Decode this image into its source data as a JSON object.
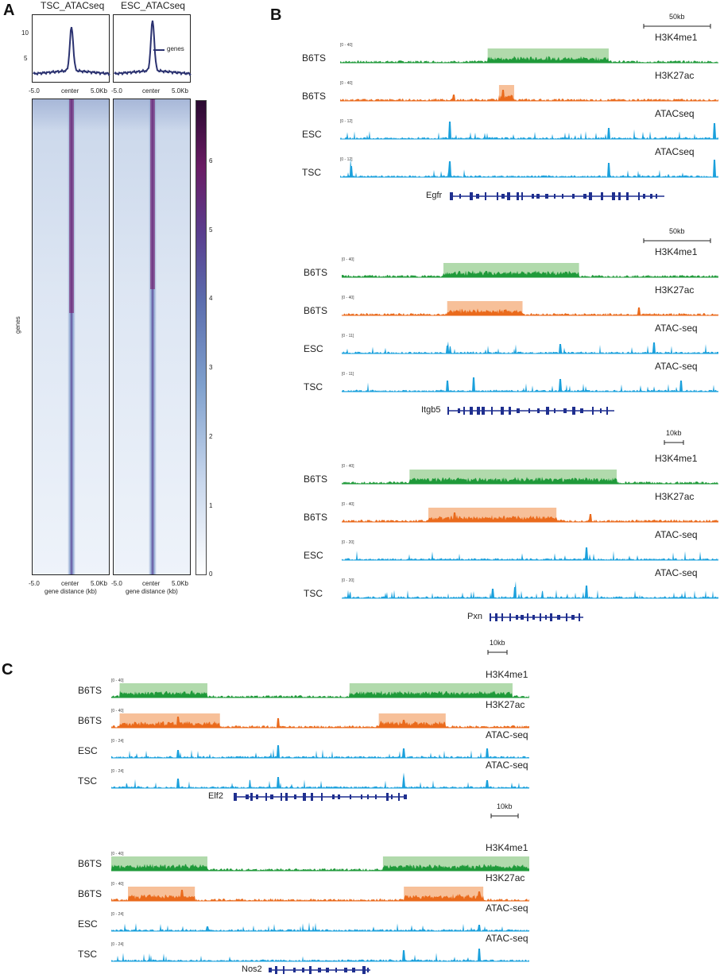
{
  "panels": {
    "A": "A",
    "B": "B",
    "C": "C"
  },
  "colors": {
    "h3k4me1": "#1f9a3a",
    "h3k4me1_box": "#a9d6a3",
    "h3k27ac": "#ea6a1c",
    "h3k27ac_box": "#f6b98e",
    "atac": "#1aa0dc",
    "gene": "#1f2f8f",
    "profile": "#2b3270"
  },
  "panelA": {
    "profiles": [
      {
        "title": "TSC_ATACseq",
        "yticks": [
          "10",
          "5"
        ],
        "xticks": [
          "-5.0",
          "center",
          "5.0Kb"
        ],
        "peak": 10.2
      },
      {
        "title": "ESC_ATACseq",
        "xticks": [
          "-5.0",
          "center",
          "5.0Kb"
        ],
        "legend": "genes",
        "peak": 11.5
      }
    ],
    "heatmap_ylabel": "genes",
    "heatmap_xticks": [
      "-5.0",
      "center",
      "5.0Kb"
    ],
    "heatmap_xlabel": "gene distance (kb)",
    "colorbar_ticks": [
      "6",
      "5",
      "4",
      "3",
      "2",
      "1",
      "0"
    ]
  },
  "panelB": [
    {
      "gene": "Egfr",
      "scale": "50kb",
      "tracks": [
        {
          "cell": "B6TS",
          "mark": "H3K4me1",
          "range": "[0 - 40]",
          "type": "h3k4me1"
        },
        {
          "cell": "B6TS",
          "mark": "H3K27ac",
          "range": "[0 - 40]",
          "type": "h3k27ac"
        },
        {
          "cell": "ESC",
          "mark": "ATACseq",
          "range": "[0 - 12]",
          "type": "atac"
        },
        {
          "cell": "TSC",
          "mark": "ATACseq",
          "range": "[0 - 12]",
          "type": "atac"
        }
      ]
    },
    {
      "gene": "Itgb5",
      "scale": "50kb",
      "tracks": [
        {
          "cell": "B6TS",
          "mark": "H3K4me1",
          "range": "[0 - 40]",
          "type": "h3k4me1"
        },
        {
          "cell": "B6TS",
          "mark": "H3K27ac",
          "range": "[0 - 40]",
          "type": "h3k27ac"
        },
        {
          "cell": "ESC",
          "mark": "ATAC-seq",
          "range": "[0 - 11]",
          "type": "atac"
        },
        {
          "cell": "TSC",
          "mark": "ATAC-seq",
          "range": "[0 - 11]",
          "type": "atac"
        }
      ]
    },
    {
      "gene": "Pxn",
      "scale": "10kb",
      "tracks": [
        {
          "cell": "B6TS",
          "mark": "H3K4me1",
          "range": "[0 - 40]",
          "type": "h3k4me1"
        },
        {
          "cell": "B6TS",
          "mark": "H3K27ac",
          "range": "[0 - 40]",
          "type": "h3k27ac"
        },
        {
          "cell": "ESC",
          "mark": "ATAC-seq",
          "range": "[0 - 20]",
          "type": "atac"
        },
        {
          "cell": "TSC",
          "mark": "ATAC-seq",
          "range": "[0 - 20]",
          "type": "atac"
        }
      ]
    }
  ],
  "panelC": [
    {
      "gene": "Elf2",
      "scale": "10kb",
      "tracks": [
        {
          "cell": "B6TS",
          "mark": "H3K4me1",
          "range": "[0 - 40]",
          "type": "h3k4me1"
        },
        {
          "cell": "B6TS",
          "mark": "H3K27ac",
          "range": "[0 - 40]",
          "type": "h3k27ac"
        },
        {
          "cell": "ESC",
          "mark": "ATAC-seq",
          "range": "[0 - 24]",
          "type": "atac"
        },
        {
          "cell": "TSC",
          "mark": "ATAC-seq",
          "range": "[0 - 24]",
          "type": "atac"
        }
      ]
    },
    {
      "gene": "Nos2",
      "scale": "10kb",
      "tracks": [
        {
          "cell": "B6TS",
          "mark": "H3K4me1",
          "range": "[0 - 40]",
          "type": "h3k4me1"
        },
        {
          "cell": "B6TS",
          "mark": "H3K27ac",
          "range": "[0 - 40]",
          "type": "h3k27ac"
        },
        {
          "cell": "ESC",
          "mark": "ATAC-seq",
          "range": "[0 - 24]",
          "type": "atac"
        },
        {
          "cell": "TSC",
          "mark": "ATAC-seq",
          "range": "[0 - 24]",
          "type": "atac"
        }
      ]
    }
  ]
}
